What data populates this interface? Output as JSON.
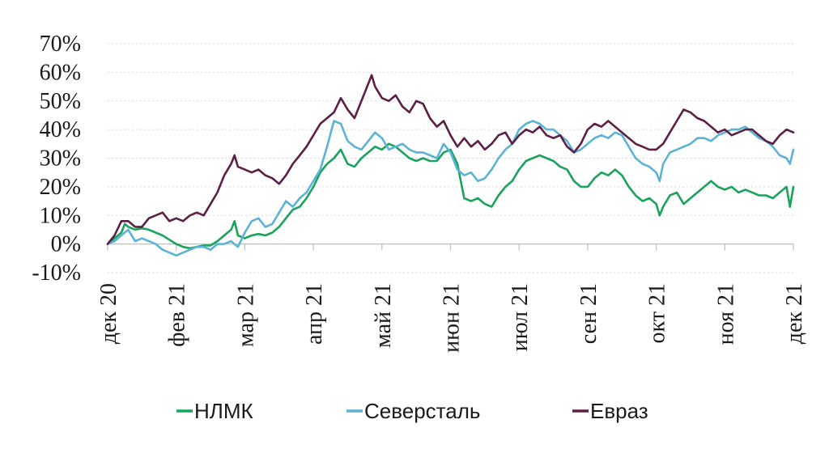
{
  "chart_data": {
    "type": "line",
    "title": "",
    "xlabel": "",
    "ylabel": "",
    "ylim": [
      -10,
      70
    ],
    "yticks": [
      -10,
      0,
      10,
      20,
      30,
      40,
      50,
      60,
      70
    ],
    "ytick_labels": [
      "-10%",
      "0%",
      "10%",
      "20%",
      "30%",
      "40%",
      "50%",
      "60%",
      "70%"
    ],
    "x_range": [
      0,
      10
    ],
    "xticks": [
      {
        "x": 0,
        "label": "дек 20"
      },
      {
        "x": 1,
        "label": "фев 21"
      },
      {
        "x": 2,
        "label": "мар 21"
      },
      {
        "x": 3,
        "label": "апр 21"
      },
      {
        "x": 4,
        "label": "май 21"
      },
      {
        "x": 5,
        "label": "июн 21"
      },
      {
        "x": 6,
        "label": "июл 21"
      },
      {
        "x": 7,
        "label": "сен 21"
      },
      {
        "x": 8,
        "label": "окт 21"
      },
      {
        "x": 9,
        "label": "ноя 21"
      },
      {
        "x": 10,
        "label": "дек 21"
      }
    ],
    "grid": true,
    "legend_position": "bottom",
    "series": [
      {
        "name": "НЛМК",
        "color": "#1aa35b",
        "points": [
          [
            0,
            0
          ],
          [
            0.1,
            2
          ],
          [
            0.2,
            4
          ],
          [
            0.25,
            7
          ],
          [
            0.3,
            6
          ],
          [
            0.4,
            5
          ],
          [
            0.5,
            5.5
          ],
          [
            0.6,
            5
          ],
          [
            0.7,
            4
          ],
          [
            0.8,
            3
          ],
          [
            0.9,
            1.5
          ],
          [
            1.0,
            0
          ],
          [
            1.1,
            -1
          ],
          [
            1.2,
            -1.5
          ],
          [
            1.3,
            -1
          ],
          [
            1.4,
            -0.5
          ],
          [
            1.5,
            -0.5
          ],
          [
            1.6,
            1
          ],
          [
            1.7,
            3
          ],
          [
            1.8,
            5
          ],
          [
            1.85,
            8
          ],
          [
            1.9,
            3
          ],
          [
            2.0,
            2
          ],
          [
            2.1,
            3
          ],
          [
            2.2,
            3.5
          ],
          [
            2.3,
            3
          ],
          [
            2.4,
            4
          ],
          [
            2.5,
            6
          ],
          [
            2.6,
            9
          ],
          [
            2.7,
            12
          ],
          [
            2.8,
            13
          ],
          [
            2.9,
            16
          ],
          [
            3.0,
            20
          ],
          [
            3.1,
            25
          ],
          [
            3.2,
            28
          ],
          [
            3.3,
            30
          ],
          [
            3.4,
            33
          ],
          [
            3.5,
            28
          ],
          [
            3.6,
            27
          ],
          [
            3.7,
            30
          ],
          [
            3.8,
            32
          ],
          [
            3.9,
            34
          ],
          [
            4.0,
            33
          ],
          [
            4.1,
            35
          ],
          [
            4.2,
            34
          ],
          [
            4.3,
            32
          ],
          [
            4.4,
            30
          ],
          [
            4.5,
            29
          ],
          [
            4.6,
            30
          ],
          [
            4.7,
            29
          ],
          [
            4.8,
            29
          ],
          [
            4.9,
            32
          ],
          [
            5.0,
            33
          ],
          [
            5.1,
            28
          ],
          [
            5.15,
            22
          ],
          [
            5.2,
            16
          ],
          [
            5.3,
            15
          ],
          [
            5.4,
            16
          ],
          [
            5.5,
            14
          ],
          [
            5.6,
            13
          ],
          [
            5.7,
            17
          ],
          [
            5.8,
            20
          ],
          [
            5.9,
            22
          ],
          [
            6.0,
            26
          ],
          [
            6.1,
            29
          ],
          [
            6.2,
            30
          ],
          [
            6.3,
            31
          ],
          [
            6.4,
            30
          ],
          [
            6.5,
            29
          ],
          [
            6.6,
            27
          ],
          [
            6.7,
            26
          ],
          [
            6.8,
            22
          ],
          [
            6.9,
            20
          ],
          [
            7.0,
            20
          ],
          [
            7.1,
            23
          ],
          [
            7.2,
            25
          ],
          [
            7.3,
            24
          ],
          [
            7.4,
            26
          ],
          [
            7.5,
            24
          ],
          [
            7.6,
            20
          ],
          [
            7.7,
            17
          ],
          [
            7.8,
            15
          ],
          [
            7.9,
            16
          ],
          [
            8.0,
            14
          ],
          [
            8.05,
            10
          ],
          [
            8.1,
            13
          ],
          [
            8.2,
            17
          ],
          [
            8.3,
            18
          ],
          [
            8.4,
            14
          ],
          [
            8.5,
            16
          ],
          [
            8.6,
            18
          ],
          [
            8.7,
            20
          ],
          [
            8.8,
            22
          ],
          [
            8.9,
            20
          ],
          [
            9.0,
            19
          ],
          [
            9.1,
            20
          ],
          [
            9.2,
            18
          ],
          [
            9.3,
            19
          ],
          [
            9.4,
            18
          ],
          [
            9.5,
            17
          ],
          [
            9.6,
            17
          ],
          [
            9.7,
            16
          ],
          [
            9.8,
            18
          ],
          [
            9.9,
            20
          ],
          [
            9.95,
            13
          ],
          [
            10.0,
            20
          ]
        ]
      },
      {
        "name": "Северсталь",
        "color": "#5bb3d6",
        "points": [
          [
            0,
            0
          ],
          [
            0.1,
            1
          ],
          [
            0.2,
            3
          ],
          [
            0.3,
            5
          ],
          [
            0.4,
            1
          ],
          [
            0.5,
            2
          ],
          [
            0.6,
            1
          ],
          [
            0.7,
            0
          ],
          [
            0.8,
            -2
          ],
          [
            0.9,
            -3
          ],
          [
            1.0,
            -4
          ],
          [
            1.1,
            -3
          ],
          [
            1.2,
            -2
          ],
          [
            1.3,
            -1
          ],
          [
            1.4,
            -1
          ],
          [
            1.5,
            -2
          ],
          [
            1.6,
            0
          ],
          [
            1.7,
            0
          ],
          [
            1.8,
            1
          ],
          [
            1.9,
            -1
          ],
          [
            2.0,
            4
          ],
          [
            2.1,
            8
          ],
          [
            2.2,
            9
          ],
          [
            2.3,
            6
          ],
          [
            2.4,
            7
          ],
          [
            2.5,
            11
          ],
          [
            2.6,
            15
          ],
          [
            2.7,
            13
          ],
          [
            2.8,
            16
          ],
          [
            2.9,
            18
          ],
          [
            3.0,
            22
          ],
          [
            3.1,
            26
          ],
          [
            3.2,
            34
          ],
          [
            3.3,
            43
          ],
          [
            3.4,
            42
          ],
          [
            3.5,
            36
          ],
          [
            3.6,
            34
          ],
          [
            3.7,
            33
          ],
          [
            3.8,
            36
          ],
          [
            3.9,
            39
          ],
          [
            4.0,
            37
          ],
          [
            4.1,
            33
          ],
          [
            4.2,
            34
          ],
          [
            4.3,
            35
          ],
          [
            4.4,
            33
          ],
          [
            4.5,
            32
          ],
          [
            4.6,
            32
          ],
          [
            4.7,
            31
          ],
          [
            4.8,
            30
          ],
          [
            4.9,
            35
          ],
          [
            5.0,
            32
          ],
          [
            5.1,
            26
          ],
          [
            5.2,
            24
          ],
          [
            5.3,
            25
          ],
          [
            5.4,
            22
          ],
          [
            5.5,
            23
          ],
          [
            5.6,
            26
          ],
          [
            5.7,
            30
          ],
          [
            5.8,
            33
          ],
          [
            5.9,
            35
          ],
          [
            6.0,
            40
          ],
          [
            6.1,
            42
          ],
          [
            6.2,
            43
          ],
          [
            6.3,
            42
          ],
          [
            6.4,
            40
          ],
          [
            6.5,
            40
          ],
          [
            6.6,
            38
          ],
          [
            6.7,
            36
          ],
          [
            6.8,
            32
          ],
          [
            6.9,
            33
          ],
          [
            7.0,
            35
          ],
          [
            7.1,
            37
          ],
          [
            7.2,
            38
          ],
          [
            7.3,
            37
          ],
          [
            7.4,
            39
          ],
          [
            7.5,
            38
          ],
          [
            7.6,
            34
          ],
          [
            7.7,
            30
          ],
          [
            7.8,
            28
          ],
          [
            7.9,
            27
          ],
          [
            8.0,
            25
          ],
          [
            8.05,
            22
          ],
          [
            8.1,
            28
          ],
          [
            8.2,
            32
          ],
          [
            8.3,
            33
          ],
          [
            8.4,
            34
          ],
          [
            8.5,
            35
          ],
          [
            8.6,
            37
          ],
          [
            8.7,
            37
          ],
          [
            8.8,
            36
          ],
          [
            8.9,
            38
          ],
          [
            9.0,
            39
          ],
          [
            9.1,
            40
          ],
          [
            9.2,
            40
          ],
          [
            9.3,
            41
          ],
          [
            9.4,
            39
          ],
          [
            9.5,
            37
          ],
          [
            9.6,
            36
          ],
          [
            9.7,
            34
          ],
          [
            9.8,
            31
          ],
          [
            9.9,
            30
          ],
          [
            9.95,
            28
          ],
          [
            10.0,
            33
          ]
        ]
      },
      {
        "name": "Евраз",
        "color": "#5c1f45",
        "points": [
          [
            0,
            0
          ],
          [
            0.1,
            3
          ],
          [
            0.2,
            8
          ],
          [
            0.3,
            8
          ],
          [
            0.4,
            6
          ],
          [
            0.5,
            6
          ],
          [
            0.6,
            9
          ],
          [
            0.7,
            10
          ],
          [
            0.8,
            11
          ],
          [
            0.9,
            8
          ],
          [
            1.0,
            9
          ],
          [
            1.1,
            8
          ],
          [
            1.2,
            10
          ],
          [
            1.3,
            11
          ],
          [
            1.4,
            10
          ],
          [
            1.5,
            14
          ],
          [
            1.6,
            18
          ],
          [
            1.7,
            24
          ],
          [
            1.8,
            28
          ],
          [
            1.85,
            31
          ],
          [
            1.9,
            27
          ],
          [
            2.0,
            26
          ],
          [
            2.1,
            25
          ],
          [
            2.2,
            26
          ],
          [
            2.3,
            24
          ],
          [
            2.4,
            23
          ],
          [
            2.5,
            21
          ],
          [
            2.6,
            24
          ],
          [
            2.7,
            28
          ],
          [
            2.8,
            31
          ],
          [
            2.9,
            34
          ],
          [
            3.0,
            38
          ],
          [
            3.1,
            42
          ],
          [
            3.2,
            44
          ],
          [
            3.3,
            46
          ],
          [
            3.4,
            51
          ],
          [
            3.5,
            47
          ],
          [
            3.6,
            44
          ],
          [
            3.7,
            50
          ],
          [
            3.8,
            56
          ],
          [
            3.85,
            59
          ],
          [
            3.9,
            55
          ],
          [
            4.0,
            51
          ],
          [
            4.1,
            50
          ],
          [
            4.2,
            52
          ],
          [
            4.3,
            48
          ],
          [
            4.4,
            46
          ],
          [
            4.5,
            50
          ],
          [
            4.6,
            49
          ],
          [
            4.7,
            44
          ],
          [
            4.8,
            41
          ],
          [
            4.9,
            43
          ],
          [
            5.0,
            38
          ],
          [
            5.1,
            34
          ],
          [
            5.2,
            37
          ],
          [
            5.3,
            34
          ],
          [
            5.4,
            36
          ],
          [
            5.5,
            33
          ],
          [
            5.6,
            35
          ],
          [
            5.7,
            38
          ],
          [
            5.8,
            39
          ],
          [
            5.9,
            35
          ],
          [
            6.0,
            38
          ],
          [
            6.1,
            40
          ],
          [
            6.2,
            39
          ],
          [
            6.3,
            41
          ],
          [
            6.4,
            38
          ],
          [
            6.5,
            37
          ],
          [
            6.6,
            38
          ],
          [
            6.7,
            34
          ],
          [
            6.8,
            32
          ],
          [
            6.9,
            35
          ],
          [
            7.0,
            40
          ],
          [
            7.1,
            42
          ],
          [
            7.2,
            41
          ],
          [
            7.3,
            43
          ],
          [
            7.4,
            41
          ],
          [
            7.5,
            39
          ],
          [
            7.6,
            37
          ],
          [
            7.7,
            35
          ],
          [
            7.8,
            34
          ],
          [
            7.9,
            33
          ],
          [
            8.0,
            33
          ],
          [
            8.1,
            35
          ],
          [
            8.2,
            39
          ],
          [
            8.3,
            43
          ],
          [
            8.4,
            47
          ],
          [
            8.5,
            46
          ],
          [
            8.6,
            44
          ],
          [
            8.7,
            43
          ],
          [
            8.8,
            41
          ],
          [
            8.9,
            39
          ],
          [
            9.0,
            40
          ],
          [
            9.1,
            38
          ],
          [
            9.2,
            39
          ],
          [
            9.3,
            40
          ],
          [
            9.4,
            40
          ],
          [
            9.5,
            38
          ],
          [
            9.6,
            36
          ],
          [
            9.7,
            35
          ],
          [
            9.8,
            38
          ],
          [
            9.9,
            40
          ],
          [
            10.0,
            39
          ]
        ]
      }
    ]
  }
}
